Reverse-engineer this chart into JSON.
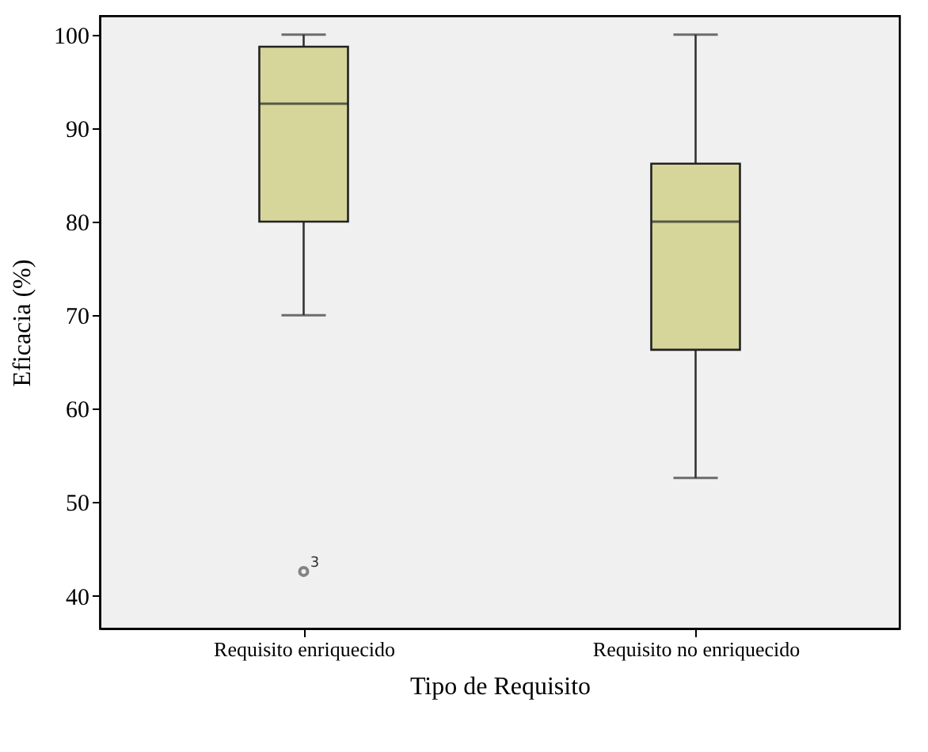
{
  "chart_data": {
    "type": "box",
    "xlabel": "Tipo de Requisito",
    "ylabel": "Eficacia (%)",
    "categories": [
      "Requisito enriquecido",
      "Requisito no enriquecido"
    ],
    "boxes": [
      {
        "low": 70,
        "q1": 80,
        "median": 92.6,
        "q3": 98.7,
        "high": 100,
        "outliers": [
          42.6
        ]
      },
      {
        "low": 52.6,
        "q1": 66.3,
        "median": 80,
        "q3": 86.2,
        "high": 100
      }
    ],
    "color": "#d6d69b",
    "ylim": [
      36.5,
      102
    ],
    "yticks": [
      40,
      50,
      60,
      70,
      80,
      90,
      100
    ],
    "grid": false,
    "annotations": [
      "3"
    ]
  }
}
